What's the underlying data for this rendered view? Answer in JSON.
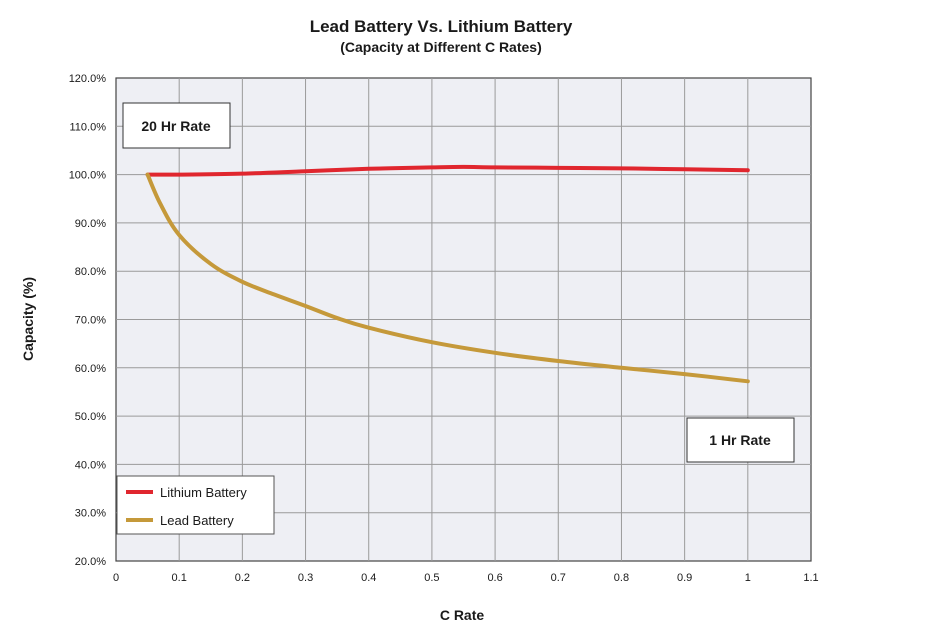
{
  "chart_data": {
    "type": "line",
    "title": "Lead Battery Vs. Lithium Battery",
    "subtitle": "(Capacity at Different C Rates)",
    "xlabel": "C Rate",
    "ylabel": "Capacity (%)",
    "xlim": [
      0,
      1.1
    ],
    "ylim": [
      20,
      120
    ],
    "x_ticks": [
      0,
      0.1,
      0.2,
      0.3,
      0.4,
      0.5,
      0.6,
      0.7,
      0.8,
      0.9,
      1,
      1.1
    ],
    "x_tick_labels": [
      "0",
      "0.1",
      "0.2",
      "0.3",
      "0.4",
      "0.5",
      "0.6",
      "0.7",
      "0.8",
      "0.9",
      "1",
      "1.1"
    ],
    "y_ticks": [
      20,
      30,
      40,
      50,
      60,
      70,
      80,
      90,
      100,
      110,
      120
    ],
    "y_tick_labels": [
      "20.0%",
      "30.0%",
      "40.0%",
      "50.0%",
      "60.0%",
      "70.0%",
      "80.0%",
      "90.0%",
      "100.0%",
      "110.0%",
      "120.0%"
    ],
    "grid": true,
    "legend_position": "bottom-left",
    "series": [
      {
        "name": "Lithium Battery",
        "color": "#e0262e",
        "x": [
          0.05,
          0.1,
          0.2,
          0.3,
          0.4,
          0.5,
          0.55,
          0.6,
          0.7,
          0.8,
          0.9,
          1.0
        ],
        "y": [
          100.0,
          100.0,
          100.2,
          100.7,
          101.2,
          101.5,
          101.6,
          101.5,
          101.4,
          101.3,
          101.1,
          100.9
        ]
      },
      {
        "name": "Lead Battery",
        "color": "#c5993a",
        "x": [
          0.05,
          0.07,
          0.1,
          0.15,
          0.2,
          0.25,
          0.3,
          0.35,
          0.4,
          0.5,
          0.6,
          0.7,
          0.8,
          0.9,
          1.0
        ],
        "y": [
          100.0,
          94.0,
          87.5,
          81.5,
          77.8,
          75.2,
          72.8,
          70.3,
          68.3,
          65.3,
          63.1,
          61.4,
          60.0,
          58.7,
          57.2
        ]
      }
    ],
    "annotations": [
      {
        "text": "20 Hr Rate",
        "anchor": "upper-left"
      },
      {
        "text": "1 Hr Rate",
        "anchor": "lower-right"
      }
    ]
  }
}
